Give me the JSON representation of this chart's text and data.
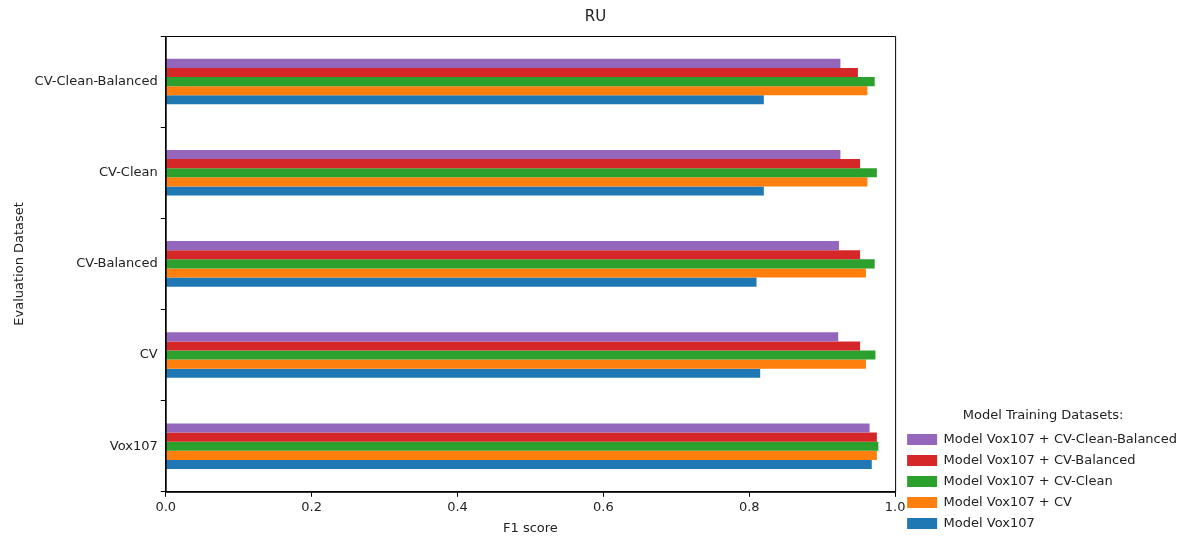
{
  "chart_data": {
    "type": "bar",
    "orientation": "horizontal",
    "title": "RU",
    "xlabel": "F1 score",
    "ylabel": "Evaluation Dataset",
    "legend_title": "Model Training Datasets:",
    "legend": "bottom right",
    "categories": [
      "CV-Clean-Balanced",
      "CV-Clean",
      "CV-Balanced",
      "CV",
      "Vox107"
    ],
    "series": [
      {
        "name": "Model Vox107 + CV-Clean-Balanced",
        "color": "#9467bd",
        "values": [
          0.925,
          0.925,
          0.923,
          0.922,
          0.965
        ]
      },
      {
        "name": "Model Vox107 + CV-Balanced",
        "color": "#d62728",
        "values": [
          0.949,
          0.952,
          0.952,
          0.952,
          0.975
        ]
      },
      {
        "name": "Model Vox107 + CV-Clean",
        "color": "#2ca02c",
        "values": [
          0.972,
          0.975,
          0.972,
          0.973,
          0.977
        ]
      },
      {
        "name": "Model Vox107 + CV",
        "color": "#ff7f0e",
        "values": [
          0.962,
          0.962,
          0.96,
          0.96,
          0.975
        ]
      },
      {
        "name": "Model Vox107",
        "color": "#1f77b4",
        "values": [
          0.82,
          0.82,
          0.81,
          0.815,
          0.968
        ]
      }
    ],
    "xlim": [
      0,
      1
    ],
    "xticks": [
      {
        "value": 0,
        "label": "0.0"
      },
      0.2,
      0.4,
      0.6,
      0.8,
      {
        "value": 1,
        "label": "1.0"
      }
    ],
    "grid": false
  }
}
